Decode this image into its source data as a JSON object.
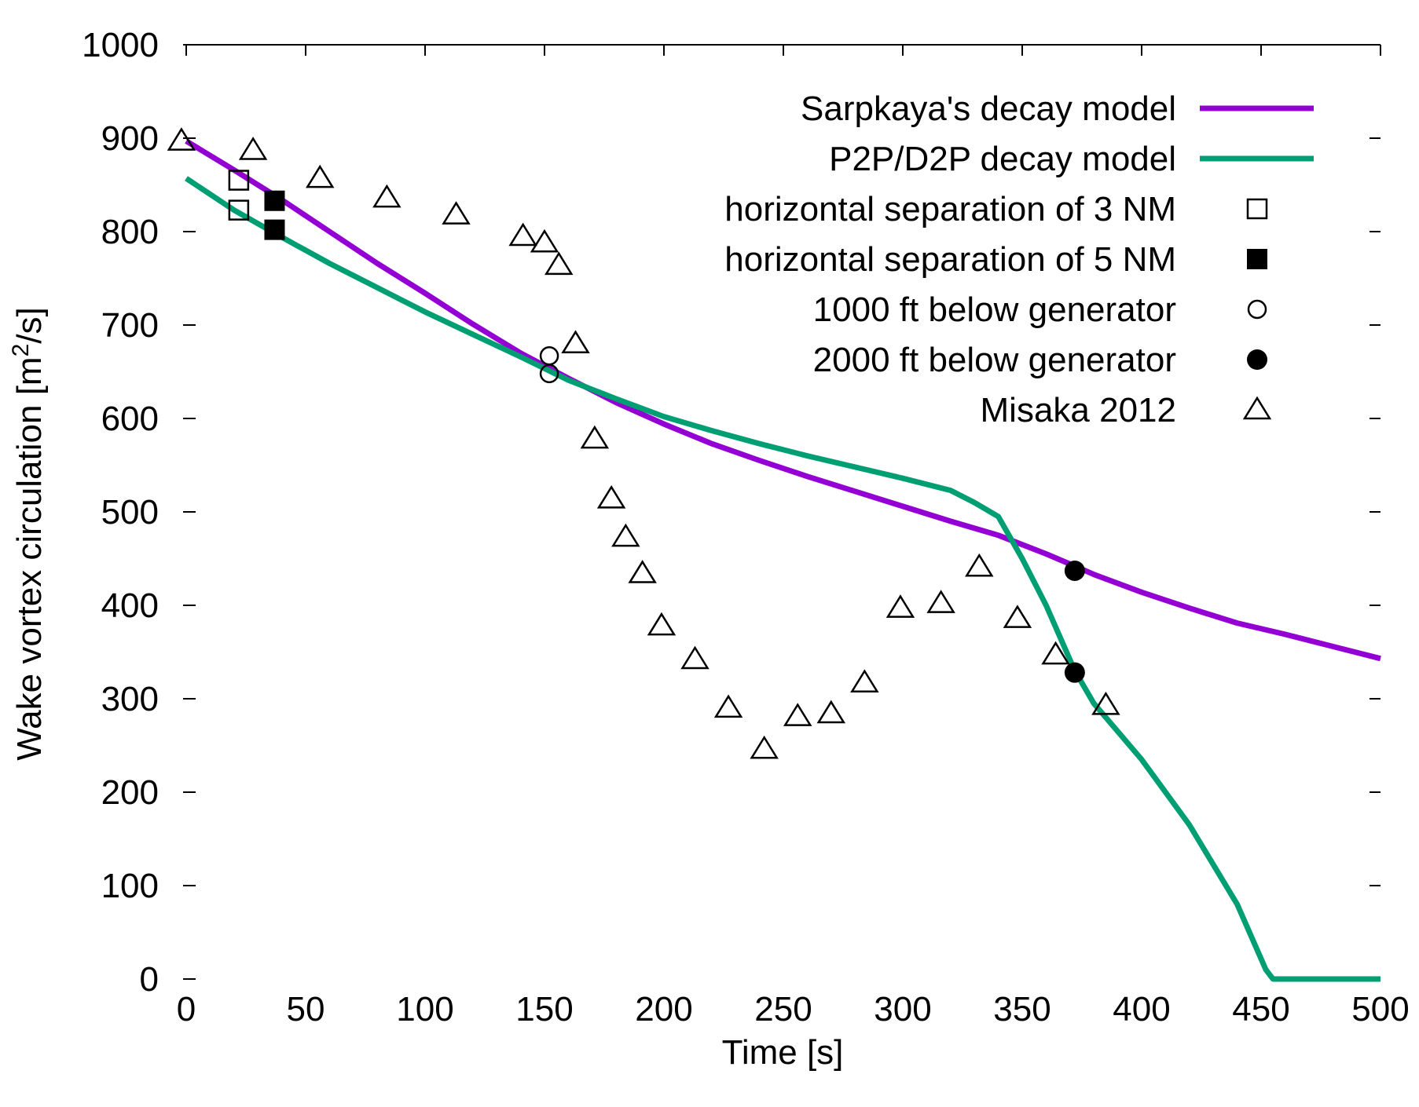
{
  "chart_data": {
    "type": "line",
    "title": "",
    "xlabel": "Time  [s]",
    "ylabel": {
      "prefix": "Wake vortex circulation  [m",
      "sup": "2",
      "suffix": "/s]"
    },
    "xlim": [
      0,
      500
    ],
    "ylim": [
      0,
      1000
    ],
    "xticks": [
      0,
      50,
      100,
      150,
      200,
      250,
      300,
      350,
      400,
      450,
      500
    ],
    "yticks": [
      0,
      100,
      200,
      300,
      400,
      500,
      600,
      700,
      800,
      900,
      1000
    ],
    "grid": false,
    "legend_position": "top-right",
    "series": [
      {
        "name": "Sarpkaya's decay model",
        "kind": "line",
        "color": "#9400d3",
        "points": [
          [
            0,
            897
          ],
          [
            20,
            866
          ],
          [
            40,
            834
          ],
          [
            60,
            800
          ],
          [
            80,
            766
          ],
          [
            100,
            734
          ],
          [
            120,
            701
          ],
          [
            140,
            670
          ],
          [
            160,
            643
          ],
          [
            180,
            617
          ],
          [
            200,
            594
          ],
          [
            220,
            573
          ],
          [
            240,
            555
          ],
          [
            260,
            538
          ],
          [
            280,
            522
          ],
          [
            300,
            506
          ],
          [
            320,
            490
          ],
          [
            340,
            475
          ],
          [
            360,
            455
          ],
          [
            372,
            442
          ],
          [
            380,
            433
          ],
          [
            400,
            414
          ],
          [
            420,
            397
          ],
          [
            440,
            381
          ],
          [
            460,
            369
          ],
          [
            480,
            356
          ],
          [
            500,
            343
          ]
        ]
      },
      {
        "name": "P2P/D2P decay model",
        "kind": "line",
        "color": "#009e73",
        "points": [
          [
            0,
            857
          ],
          [
            20,
            823
          ],
          [
            40,
            794
          ],
          [
            60,
            766
          ],
          [
            80,
            740
          ],
          [
            100,
            714
          ],
          [
            120,
            690
          ],
          [
            140,
            666
          ],
          [
            160,
            641
          ],
          [
            180,
            621
          ],
          [
            200,
            602
          ],
          [
            220,
            587
          ],
          [
            240,
            573
          ],
          [
            260,
            560
          ],
          [
            280,
            548
          ],
          [
            300,
            536
          ],
          [
            320,
            523
          ],
          [
            330,
            510
          ],
          [
            340,
            495
          ],
          [
            350,
            450
          ],
          [
            360,
            400
          ],
          [
            372,
            330
          ],
          [
            380,
            295
          ],
          [
            400,
            235
          ],
          [
            420,
            165
          ],
          [
            440,
            80
          ],
          [
            452,
            10
          ],
          [
            455,
            0
          ],
          [
            500,
            0
          ]
        ]
      },
      {
        "name": "horizontal separation of 3 NM",
        "kind": "marker",
        "marker": "open-square",
        "points": [
          [
            22,
            855
          ],
          [
            22,
            823
          ]
        ]
      },
      {
        "name": "horizontal separation of 5 NM",
        "kind": "marker",
        "marker": "filled-square",
        "points": [
          [
            37,
            833
          ],
          [
            37,
            802
          ]
        ]
      },
      {
        "name": "1000 ft below generator",
        "kind": "marker",
        "marker": "open-circle",
        "points": [
          [
            152,
            667
          ],
          [
            152,
            648
          ]
        ]
      },
      {
        "name": "2000 ft below generator",
        "kind": "marker",
        "marker": "filled-circle",
        "points": [
          [
            372,
            437
          ],
          [
            372,
            328
          ]
        ]
      },
      {
        "name": "Misaka 2012",
        "kind": "marker",
        "marker": "open-triangle",
        "points": [
          [
            -2,
            897
          ],
          [
            28,
            887
          ],
          [
            56,
            857
          ],
          [
            84,
            836
          ],
          [
            113,
            818
          ],
          [
            141,
            795
          ],
          [
            150,
            788
          ],
          [
            156,
            764
          ],
          [
            163,
            680
          ],
          [
            171,
            578
          ],
          [
            178,
            514
          ],
          [
            184,
            473
          ],
          [
            191,
            434
          ],
          [
            199,
            378
          ],
          [
            213,
            342
          ],
          [
            227,
            290
          ],
          [
            242,
            246
          ],
          [
            256,
            281
          ],
          [
            270,
            284
          ],
          [
            284,
            317
          ],
          [
            299,
            397
          ],
          [
            316,
            402
          ],
          [
            332,
            441
          ],
          [
            348,
            386
          ],
          [
            364,
            347
          ],
          [
            385,
            293
          ]
        ]
      }
    ]
  }
}
